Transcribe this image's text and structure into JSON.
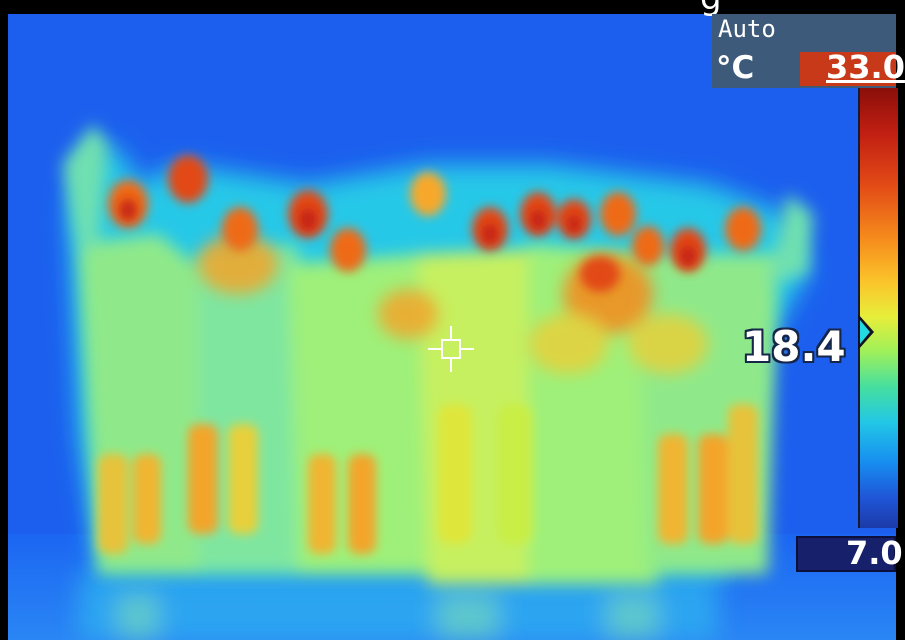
{
  "camera": {
    "mode": "Auto",
    "unit": "°C",
    "scale_max": "33.0",
    "scale_min": "7.0",
    "spot_temperature": "18.4",
    "top_text": "g"
  },
  "scale_colors": [
    "#8a0f0a",
    "#c01e12",
    "#e24a16",
    "#f58a1c",
    "#fbc42a",
    "#e7ee3a",
    "#9ef05a",
    "#45dfa0",
    "#22c7e6",
    "#178ef0",
    "#1f56d8",
    "#1c3aa8"
  ],
  "scene": {
    "subject": "thermal-group-photo",
    "background_color": "#1c66f2"
  }
}
